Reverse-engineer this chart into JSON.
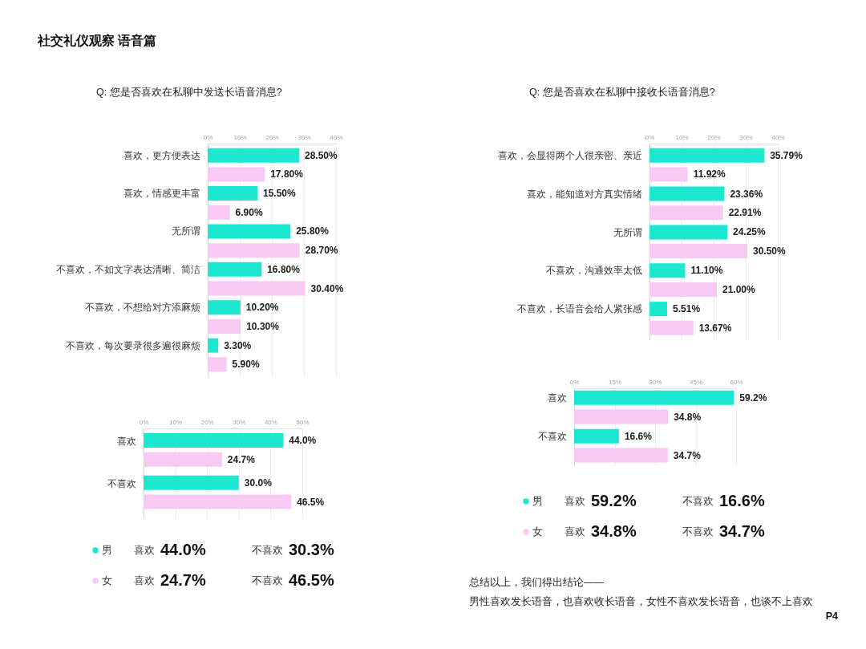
{
  "chart_data": [
    {
      "type": "other",
      "title": "社交礼仪观察 语音篇"
    },
    {
      "type": "bar",
      "title": "Q: 您是否喜欢在私聊中发送长语音消息?",
      "orientation": "horizontal",
      "categories": [
        "喜欢，更方便表达",
        "喜欢，情感更丰富",
        "无所谓",
        "不喜欢，不如文字表达清晰、简洁",
        "不喜欢，不想给对方添麻烦",
        "不喜欢，每次要录很多遍很麻烦"
      ],
      "series": [
        {
          "color": "#1de8cf",
          "values": [
            28.5,
            15.5,
            25.8,
            16.8,
            10.2,
            3.3
          ],
          "value_labels": [
            "28.50%",
            "15.50%",
            "25.80%",
            "16.80%",
            "10.20%",
            "3.30%"
          ]
        },
        {
          "color": "#f8c9f3",
          "values": [
            17.8,
            6.9,
            28.7,
            30.4,
            10.3,
            5.9
          ],
          "value_labels": [
            "17.80%",
            "6.90%",
            "28.70%",
            "30.40%",
            "10.30%",
            "5.90%"
          ]
        }
      ],
      "xlim": [
        0,
        40
      ],
      "xticks": [
        {
          "value": 0,
          "label": "0%"
        },
        {
          "value": 10,
          "label": "10%"
        },
        {
          "value": 20,
          "label": "20%"
        },
        {
          "value": 30,
          "label": "30%"
        },
        {
          "value": 40,
          "label": "40%"
        }
      ],
      "grid": "x"
    },
    {
      "type": "bar",
      "orientation": "horizontal",
      "categories": [
        "喜欢",
        "不喜欢"
      ],
      "series": [
        {
          "name": "男",
          "color": "#1de8cf",
          "values": [
            44.0,
            30.0
          ],
          "value_labels": [
            "44.0%",
            "30.0%"
          ]
        },
        {
          "name": "女",
          "color": "#f8c9f3",
          "values": [
            24.7,
            46.5
          ],
          "value_labels": [
            "24.7%",
            "46.5%"
          ]
        }
      ],
      "xlim": [
        0,
        50
      ],
      "xticks": [
        {
          "value": 0,
          "label": "0%"
        },
        {
          "value": 10,
          "label": "10%"
        },
        {
          "value": 20,
          "label": "20%"
        },
        {
          "value": 30,
          "label": "30%"
        },
        {
          "value": 40,
          "label": "40%"
        },
        {
          "value": 50,
          "label": "50%"
        }
      ],
      "grid": "x",
      "legend": "bottom",
      "annotations": [
        "喜欢",
        "44.0%",
        "不喜欢",
        "30.3%",
        "喜欢",
        "24.7%",
        "不喜欢",
        "46.5%"
      ]
    },
    {
      "type": "bar",
      "title": "Q: 您是否喜欢在私聊中接收长语音消息?",
      "orientation": "horizontal",
      "categories": [
        "喜欢，会显得两个人很亲密、亲近",
        "喜欢，能知道对方真实情绪",
        "无所谓",
        "不喜欢，沟通效率太低",
        "不喜欢，长语音会给人紧张感"
      ],
      "series": [
        {
          "color": "#1de8cf",
          "values": [
            35.79,
            23.36,
            24.25,
            11.1,
            5.51
          ],
          "value_labels": [
            "35.79%",
            "23.36%",
            "24.25%",
            "11.10%",
            "5.51%"
          ]
        },
        {
          "color": "#f8c9f3",
          "values": [
            11.92,
            22.91,
            30.5,
            21.0,
            13.67
          ],
          "value_labels": [
            "11.92%",
            "22.91%",
            "30.50%",
            "21.00%",
            "13.67%"
          ]
        }
      ],
      "xlim": [
        0,
        40
      ],
      "xticks": [
        {
          "value": 0,
          "label": "0%"
        },
        {
          "value": 10,
          "label": "10%"
        },
        {
          "value": 20,
          "label": "20%"
        },
        {
          "value": 30,
          "label": "30%"
        },
        {
          "value": 40,
          "label": "40%"
        }
      ],
      "grid": "x"
    },
    {
      "type": "bar",
      "orientation": "horizontal",
      "categories": [
        "喜欢",
        "不喜欢"
      ],
      "series": [
        {
          "name": "男",
          "color": "#1de8cf",
          "values": [
            59.2,
            16.6
          ],
          "value_labels": [
            "59.2%",
            "16.6%"
          ]
        },
        {
          "name": "女",
          "color": "#f8c9f3",
          "values": [
            34.8,
            34.7
          ],
          "value_labels": [
            "34.8%",
            "34.7%"
          ]
        }
      ],
      "xlim": [
        0,
        60
      ],
      "xticks": [
        {
          "value": 0,
          "label": "0%"
        },
        {
          "value": 15,
          "label": "15%"
        },
        {
          "value": 30,
          "label": "30%"
        },
        {
          "value": 45,
          "label": "45%"
        },
        {
          "value": 60,
          "label": "60%"
        }
      ],
      "grid": "x",
      "legend": "bottom",
      "annotations": [
        "喜欢",
        "59.2%",
        "不喜欢",
        "16.6%",
        "喜欢",
        "34.8%",
        "不喜欢",
        "34.7%"
      ]
    },
    {
      "type": "other",
      "annotations": [
        "总结以上，我们得出结论——",
        "男性喜欢发长语音，也喜欢收长语音，女性不喜欢发长语音，也谈不上喜欢",
        "P4"
      ]
    }
  ]
}
